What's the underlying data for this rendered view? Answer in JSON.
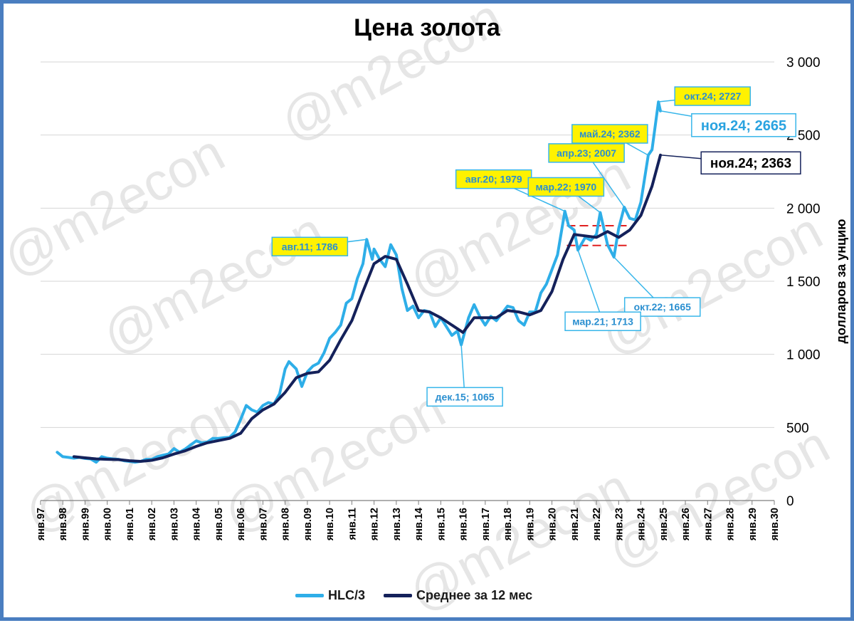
{
  "watermark": "@m2econ",
  "chart_data": {
    "type": "line",
    "title": "Цена золота",
    "ylabel": "долларов за унцию",
    "ylim": [
      0,
      3000
    ],
    "yticks": [
      0,
      500,
      1000,
      1500,
      2000,
      2500,
      3000
    ],
    "ytick_labels": [
      "0",
      "500",
      "1 000",
      "1 500",
      "2 000",
      "2 500",
      "3 000"
    ],
    "x_range": [
      1997,
      2030
    ],
    "xtick_labels": [
      "янв.97",
      "янв.98",
      "янв.99",
      "янв.00",
      "янв.01",
      "янв.02",
      "янв.03",
      "янв.04",
      "янв.05",
      "янв.06",
      "янв.07",
      "янв.08",
      "янв.09",
      "янв.10",
      "янв.11",
      "янв.12",
      "янв.13",
      "янв.14",
      "янв.15",
      "янв.16",
      "янв.17",
      "янв.18",
      "янв.19",
      "янв.20",
      "янв.21",
      "янв.22",
      "янв.23",
      "янв.24",
      "янв.25",
      "янв.26",
      "янв.27",
      "янв.28",
      "янв.29",
      "янв.30"
    ],
    "grid": true,
    "legend_position": "bottom",
    "series": [
      {
        "name": "HLC/3",
        "color": "#2eaee8",
        "points": [
          [
            1997.75,
            330
          ],
          [
            1998.0,
            300
          ],
          [
            1998.25,
            295
          ],
          [
            1998.5,
            290
          ],
          [
            1998.75,
            295
          ],
          [
            1999.0,
            288
          ],
          [
            1999.25,
            285
          ],
          [
            1999.5,
            262
          ],
          [
            1999.75,
            300
          ],
          [
            2000.0,
            290
          ],
          [
            2000.25,
            285
          ],
          [
            2000.5,
            282
          ],
          [
            2000.75,
            272
          ],
          [
            2001.0,
            268
          ],
          [
            2001.25,
            262
          ],
          [
            2001.5,
            268
          ],
          [
            2001.75,
            282
          ],
          [
            2002.0,
            282
          ],
          [
            2002.25,
            300
          ],
          [
            2002.5,
            310
          ],
          [
            2002.75,
            318
          ],
          [
            2003.0,
            355
          ],
          [
            2003.25,
            330
          ],
          [
            2003.5,
            352
          ],
          [
            2003.75,
            380
          ],
          [
            2004.0,
            408
          ],
          [
            2004.25,
            395
          ],
          [
            2004.5,
            400
          ],
          [
            2004.75,
            425
          ],
          [
            2005.0,
            425
          ],
          [
            2005.25,
            430
          ],
          [
            2005.5,
            432
          ],
          [
            2005.75,
            470
          ],
          [
            2006.0,
            555
          ],
          [
            2006.25,
            650
          ],
          [
            2006.5,
            620
          ],
          [
            2006.75,
            605
          ],
          [
            2007.0,
            650
          ],
          [
            2007.25,
            670
          ],
          [
            2007.5,
            660
          ],
          [
            2007.75,
            730
          ],
          [
            2008.0,
            900
          ],
          [
            2008.17,
            950
          ],
          [
            2008.5,
            900
          ],
          [
            2008.75,
            780
          ],
          [
            2009.0,
            880
          ],
          [
            2009.25,
            920
          ],
          [
            2009.5,
            940
          ],
          [
            2009.75,
            1010
          ],
          [
            2010.0,
            1110
          ],
          [
            2010.25,
            1150
          ],
          [
            2010.5,
            1200
          ],
          [
            2010.75,
            1350
          ],
          [
            2011.0,
            1380
          ],
          [
            2011.25,
            1520
          ],
          [
            2011.5,
            1620
          ],
          [
            2011.67,
            1786
          ],
          [
            2011.92,
            1650
          ],
          [
            2012.0,
            1720
          ],
          [
            2012.25,
            1650
          ],
          [
            2012.5,
            1600
          ],
          [
            2012.75,
            1750
          ],
          [
            2013.0,
            1680
          ],
          [
            2013.25,
            1450
          ],
          [
            2013.5,
            1300
          ],
          [
            2013.75,
            1330
          ],
          [
            2014.0,
            1250
          ],
          [
            2014.25,
            1300
          ],
          [
            2014.5,
            1290
          ],
          [
            2014.75,
            1190
          ],
          [
            2015.0,
            1250
          ],
          [
            2015.25,
            1190
          ],
          [
            2015.5,
            1130
          ],
          [
            2015.75,
            1160
          ],
          [
            2015.92,
            1065
          ],
          [
            2016.25,
            1250
          ],
          [
            2016.5,
            1340
          ],
          [
            2016.75,
            1260
          ],
          [
            2017.0,
            1200
          ],
          [
            2017.25,
            1260
          ],
          [
            2017.5,
            1230
          ],
          [
            2017.75,
            1280
          ],
          [
            2018.0,
            1330
          ],
          [
            2018.25,
            1320
          ],
          [
            2018.5,
            1230
          ],
          [
            2018.75,
            1200
          ],
          [
            2019.0,
            1290
          ],
          [
            2019.25,
            1290
          ],
          [
            2019.5,
            1420
          ],
          [
            2019.75,
            1480
          ],
          [
            2020.0,
            1580
          ],
          [
            2020.25,
            1680
          ],
          [
            2020.58,
            1979
          ],
          [
            2020.75,
            1880
          ],
          [
            2021.0,
            1850
          ],
          [
            2021.17,
            1713
          ],
          [
            2021.5,
            1800
          ],
          [
            2021.75,
            1780
          ],
          [
            2022.0,
            1820
          ],
          [
            2022.17,
            1970
          ],
          [
            2022.5,
            1750
          ],
          [
            2022.79,
            1665
          ],
          [
            2023.0,
            1860
          ],
          [
            2023.25,
            2007
          ],
          [
            2023.5,
            1930
          ],
          [
            2023.75,
            1920
          ],
          [
            2024.0,
            2040
          ],
          [
            2024.33,
            2362
          ],
          [
            2024.5,
            2400
          ],
          [
            2024.79,
            2727
          ],
          [
            2024.88,
            2665
          ]
        ]
      },
      {
        "name": "Среднее за 12 мес",
        "color": "#14215a",
        "points": [
          [
            1998.5,
            300
          ],
          [
            1999.0,
            292
          ],
          [
            1999.5,
            285
          ],
          [
            2000.0,
            282
          ],
          [
            2000.5,
            280
          ],
          [
            2001.0,
            272
          ],
          [
            2001.5,
            268
          ],
          [
            2002.0,
            275
          ],
          [
            2002.5,
            292
          ],
          [
            2003.0,
            318
          ],
          [
            2003.5,
            340
          ],
          [
            2004.0,
            370
          ],
          [
            2004.5,
            395
          ],
          [
            2005.0,
            410
          ],
          [
            2005.5,
            425
          ],
          [
            2006.0,
            460
          ],
          [
            2006.5,
            560
          ],
          [
            2007.0,
            620
          ],
          [
            2007.5,
            660
          ],
          [
            2008.0,
            740
          ],
          [
            2008.5,
            840
          ],
          [
            2009.0,
            870
          ],
          [
            2009.5,
            880
          ],
          [
            2010.0,
            960
          ],
          [
            2010.5,
            1100
          ],
          [
            2011.0,
            1230
          ],
          [
            2011.5,
            1430
          ],
          [
            2012.0,
            1620
          ],
          [
            2012.5,
            1670
          ],
          [
            2013.0,
            1650
          ],
          [
            2013.5,
            1480
          ],
          [
            2014.0,
            1300
          ],
          [
            2014.5,
            1290
          ],
          [
            2015.0,
            1250
          ],
          [
            2015.5,
            1200
          ],
          [
            2016.0,
            1150
          ],
          [
            2016.5,
            1250
          ],
          [
            2017.0,
            1250
          ],
          [
            2017.5,
            1250
          ],
          [
            2018.0,
            1300
          ],
          [
            2018.5,
            1290
          ],
          [
            2019.0,
            1270
          ],
          [
            2019.5,
            1300
          ],
          [
            2020.0,
            1430
          ],
          [
            2020.5,
            1650
          ],
          [
            2021.0,
            1820
          ],
          [
            2021.5,
            1810
          ],
          [
            2022.0,
            1800
          ],
          [
            2022.5,
            1840
          ],
          [
            2023.0,
            1800
          ],
          [
            2023.5,
            1850
          ],
          [
            2024.0,
            1950
          ],
          [
            2024.5,
            2150
          ],
          [
            2024.88,
            2363
          ]
        ]
      }
    ],
    "reference_lines": [
      {
        "y": 1880,
        "x_from": 2020.67,
        "x_to": 2023.5,
        "color": "#e02020"
      },
      {
        "y": 1745,
        "x_from": 2020.67,
        "x_to": 2023.5,
        "color": "#e02020"
      }
    ],
    "annotations": [
      {
        "text": "авг.11; 1786",
        "x": 2011.67,
        "y": 1786,
        "style": "yellow",
        "anchor": "left"
      },
      {
        "text": "авг.20; 1979",
        "x": 2020.58,
        "y": 1979,
        "style": "yellow",
        "anchor": "left"
      },
      {
        "text": "мар.22; 1970",
        "x": 2022.17,
        "y": 1970,
        "style": "yellow",
        "anchor": "left"
      },
      {
        "text": "апр.23; 2007",
        "x": 2023.25,
        "y": 2007,
        "style": "yellow",
        "anchor": "left"
      },
      {
        "text": "май.24; 2362",
        "x": 2024.33,
        "y": 2362,
        "style": "yellow",
        "anchor": "left"
      },
      {
        "text": "окт.24; 2727",
        "x": 2024.79,
        "y": 2727,
        "style": "yellow",
        "anchor": "right"
      },
      {
        "text": "ноя.24; 2665",
        "x": 2024.88,
        "y": 2665,
        "style": "blue-large",
        "anchor": "right"
      },
      {
        "text": "ноя.24; 2363",
        "x": 2024.88,
        "y": 2363,
        "style": "dark-large",
        "anchor": "right"
      },
      {
        "text": "окт.22; 1665",
        "x": 2022.79,
        "y": 1665,
        "style": "blue",
        "anchor": "below"
      },
      {
        "text": "мар.21; 1713",
        "x": 2021.17,
        "y": 1713,
        "style": "blue",
        "anchor": "below"
      },
      {
        "text": "дек.15; 1065",
        "x": 2015.92,
        "y": 1065,
        "style": "blue",
        "anchor": "below"
      }
    ]
  }
}
